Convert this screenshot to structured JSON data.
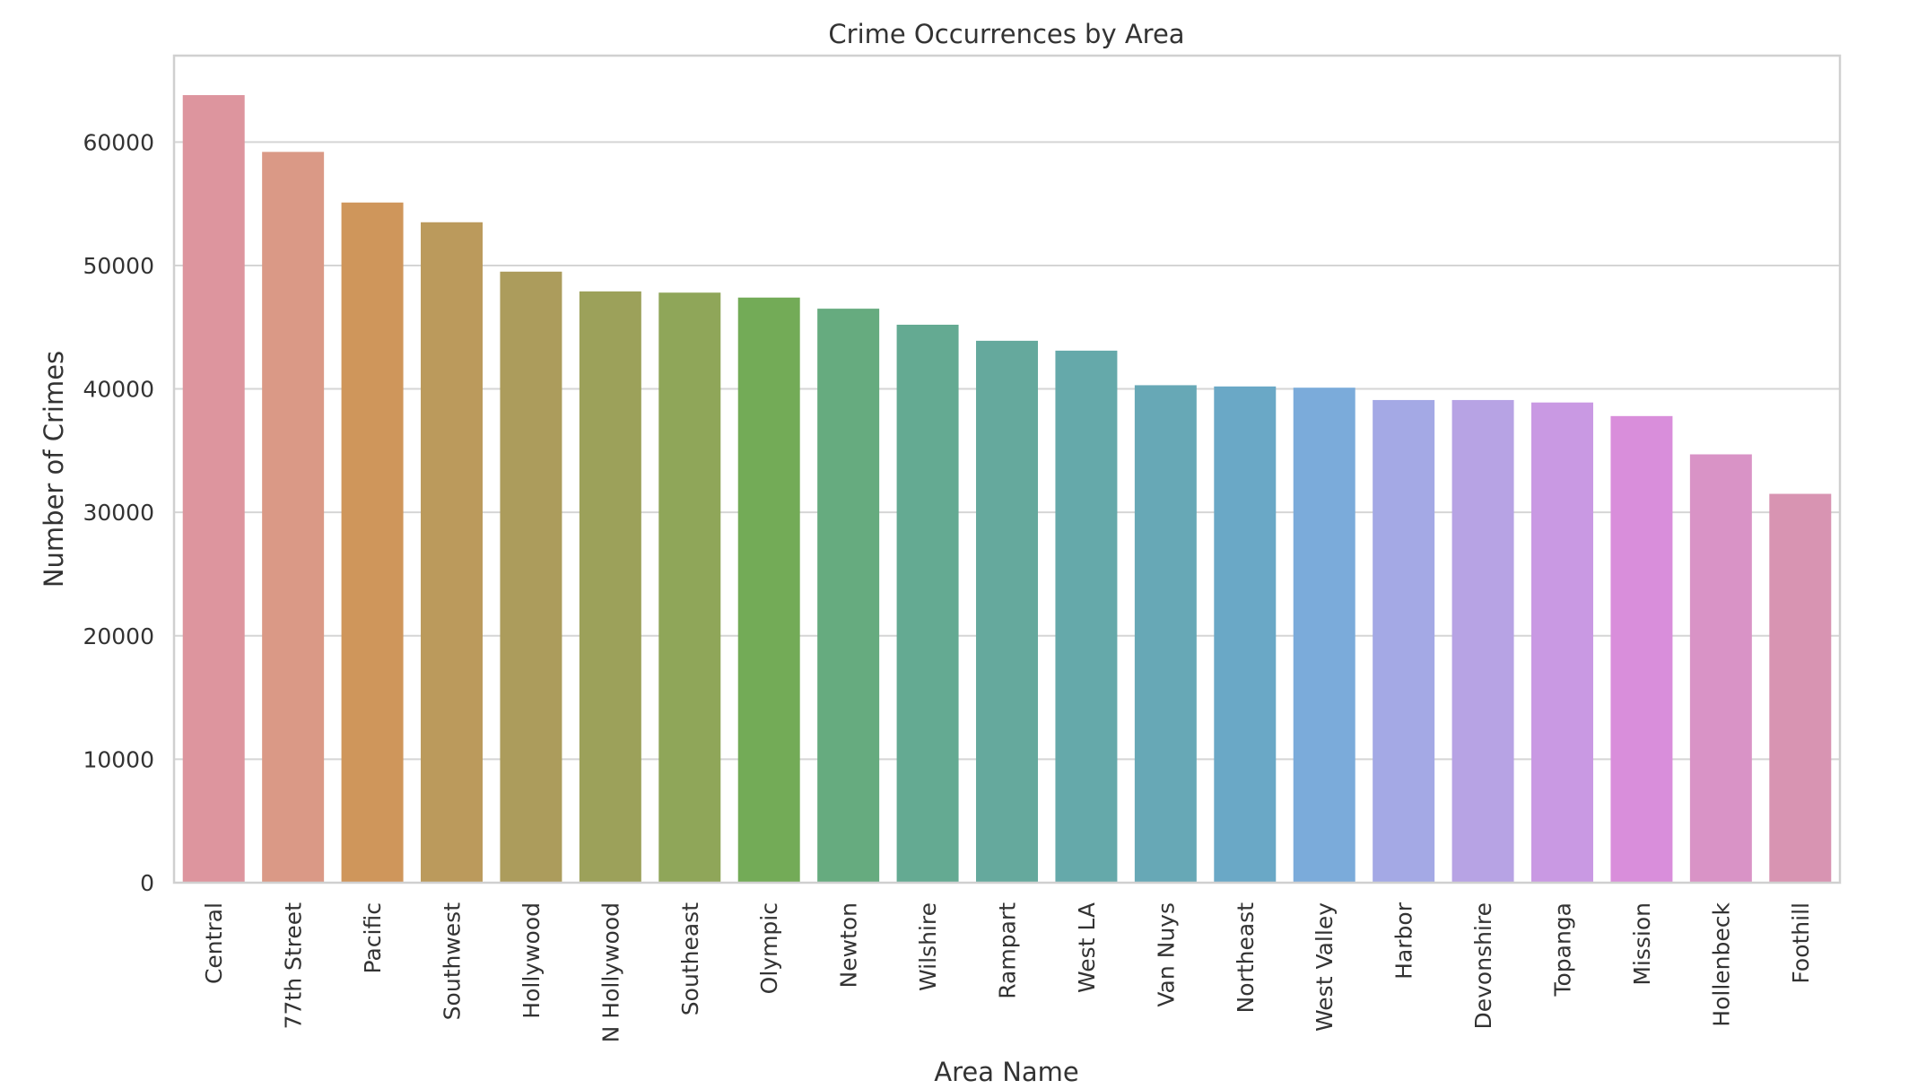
{
  "chart_data": {
    "type": "bar",
    "title": "Crime Occurrences by Area",
    "xlabel": "Area Name",
    "ylabel": "Number of Crimes",
    "categories": [
      "Central",
      "77th Street",
      "Pacific",
      "Southwest",
      "Hollywood",
      "N Hollywood",
      "Southeast",
      "Olympic",
      "Newton",
      "Wilshire",
      "Rampart",
      "West LA",
      "Van Nuys",
      "Northeast",
      "West Valley",
      "Harbor",
      "Devonshire",
      "Topanga",
      "Mission",
      "Hollenbeck",
      "Foothill"
    ],
    "values": [
      63800,
      59200,
      55100,
      53500,
      49500,
      47900,
      47800,
      47400,
      46500,
      45200,
      43900,
      43100,
      40300,
      40200,
      40100,
      39100,
      39100,
      38900,
      37800,
      34700,
      31500
    ],
    "colors": [
      "#dd959e",
      "#da9986",
      "#cf965b",
      "#bb9a5c",
      "#ac9c5c",
      "#9ca15a",
      "#8fa659",
      "#73ab57",
      "#66ab7f",
      "#64aa92",
      "#65a99d",
      "#65a9aa",
      "#67a8b6",
      "#6aa8c6",
      "#7babda",
      "#a4a9e5",
      "#b7a3e4",
      "#c999e3",
      "#d98edb",
      "#d993c6",
      "#d894b2"
    ],
    "yticks": [
      0,
      10000,
      20000,
      30000,
      40000,
      50000,
      60000
    ],
    "ylim": [
      0,
      67000
    ],
    "grid": true,
    "legend": "none"
  }
}
